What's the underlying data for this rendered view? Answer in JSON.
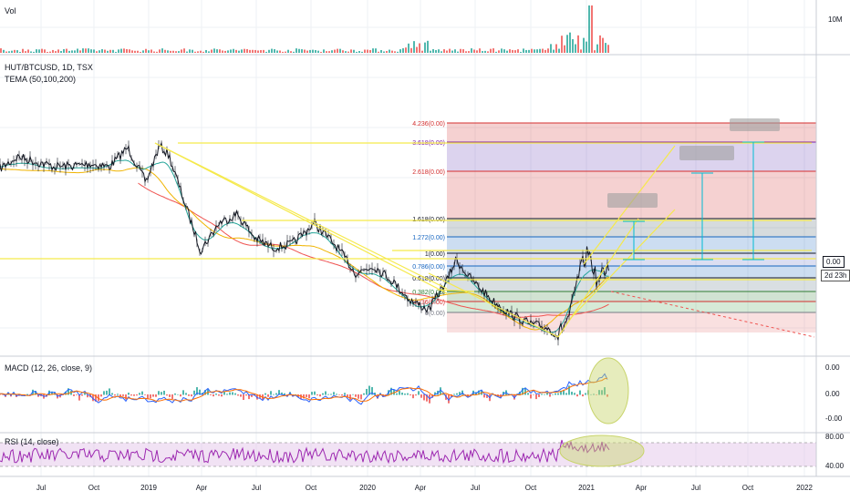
{
  "colors": {
    "background": "#ffffff",
    "grid": "#eef0f4",
    "pane_border": "#c9ccd4",
    "price": "#131722",
    "tema_50": "#26a69a",
    "tema_100": "#f0b400",
    "tema_200": "#ef5350",
    "trendline": "#f5e94b",
    "macd_line": "#2962ff",
    "signal_line": "#ff6d00",
    "hist_up": "#26a69a",
    "hist_down": "#ef5350",
    "rsi_line": "#9c27b0",
    "rsi_band": "#e1bee7",
    "ellipse": "#c8d46a",
    "measure": "#00bcd4"
  },
  "volume_panel": {
    "title": "Vol",
    "axis_label": "10M"
  },
  "price_panel": {
    "symbol": "HUT/BTCUSD, 1D, TSX",
    "indicator": "TEMA (50,100,200)",
    "right_labels": [
      "0.00",
      "2d 23h"
    ]
  },
  "fib_levels": [
    {
      "label": "4.236(0.00)",
      "color": "#d32f2f"
    },
    {
      "label": "3.618(0.00)",
      "color": "#7b1fa2"
    },
    {
      "label": "2.618(0.00)",
      "color": "#d32f2f"
    },
    {
      "label": "1.618(0.00)",
      "color": "#131722"
    },
    {
      "label": "1.272(0.00)",
      "color": "#1565c0"
    },
    {
      "label": "1(0.00)",
      "color": "#131722"
    },
    {
      "label": "0.786(0.00)",
      "color": "#1565c0"
    },
    {
      "label": "0.618(0.00)",
      "color": "#131722"
    },
    {
      "label": "0.382(0.00)",
      "color": "#2e7d32"
    },
    {
      "label": "0.236(0.00)",
      "color": "#d32f2f"
    },
    {
      "label": "0(0.00)",
      "color": "#787b86"
    }
  ],
  "macd_panel": {
    "title": "MACD (12, 26, close, 9)",
    "axis_labels": [
      "0.00",
      "0.00",
      "-0.00"
    ]
  },
  "rsi_panel": {
    "title": "RSI (14, close)",
    "axis_labels": [
      "80.00",
      "40.00"
    ]
  },
  "x_axis": {
    "ticks": [
      "Jul",
      "Oct",
      "2019",
      "Apr",
      "Jul",
      "Oct",
      "2020",
      "Apr",
      "Jul",
      "Oct",
      "2021",
      "Apr",
      "Jul",
      "Oct",
      "2022"
    ]
  },
  "chart_data": {
    "type": "line",
    "title": "HUT/BTCUSD, 1D, TSX",
    "series": [
      {
        "name": "HUT/BTCUSD",
        "values": []
      },
      {
        "name": "TEMA (50,100,200)",
        "values": []
      }
    ],
    "fib_extension_levels": [
      0,
      0.236,
      0.382,
      0.618,
      0.786,
      1,
      1.272,
      1.618,
      2.618,
      3.618,
      4.236
    ],
    "indicators": [
      "Vol",
      "TEMA (50,100,200)",
      "MACD (12, 26, close, 9)",
      "RSI (14, close)"
    ],
    "rsi_levels": [
      80,
      40
    ],
    "grid": true
  }
}
